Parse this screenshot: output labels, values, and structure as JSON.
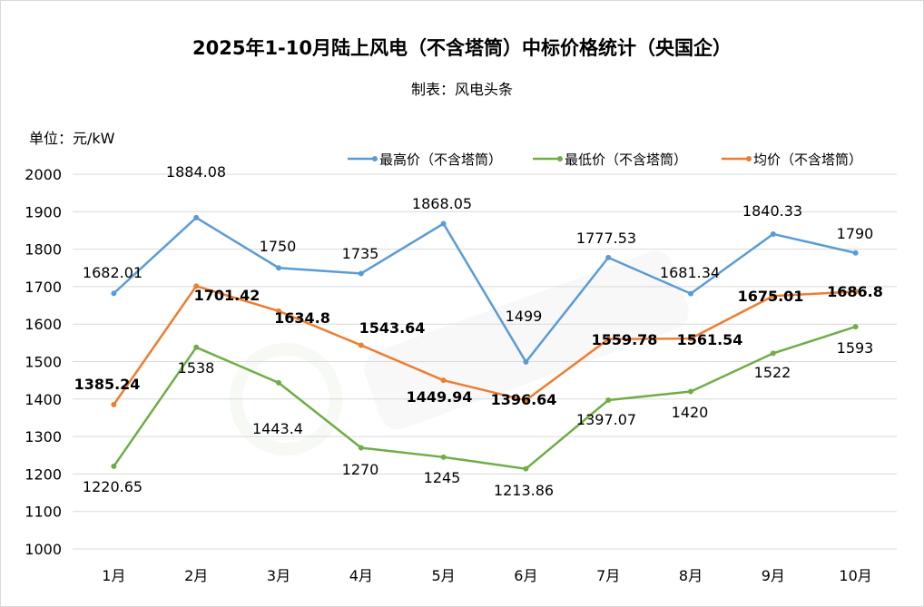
{
  "chart_data": {
    "type": "line",
    "title": "2025年1-10月陆上风电（不含塔筒）中标价格统计（央国企）",
    "subtitle": "制表：风电头条",
    "ylabel": "单位：元/kW",
    "xlabel": "",
    "categories": [
      "1月",
      "2月",
      "3月",
      "4月",
      "5月",
      "6月",
      "7月",
      "8月",
      "9月",
      "10月"
    ],
    "ylim": [
      1000,
      2000
    ],
    "yticks": [
      1000,
      1100,
      1200,
      1300,
      1400,
      1500,
      1600,
      1700,
      1800,
      1900,
      2000
    ],
    "grid": true,
    "legend_position": "top-right",
    "series": [
      {
        "name": "最高价（不含塔筒）",
        "color": "#5b9bd5",
        "values": [
          1682.01,
          1884.08,
          1750,
          1735,
          1868.05,
          1499,
          1777.53,
          1681.34,
          1840.33,
          1790
        ],
        "labels": [
          "1682.01",
          "1884.08",
          "1750",
          "1735",
          "1868.05",
          "1499",
          "1777.53",
          "1681.34",
          "1840.33",
          "1790"
        ]
      },
      {
        "name": "最低价（不含塔筒）",
        "color": "#70ad47",
        "values": [
          1220.65,
          1538,
          1443.4,
          1270,
          1245,
          1213.86,
          1397.07,
          1420,
          1522,
          1593
        ],
        "labels": [
          "1220.65",
          "1538",
          "1443.4",
          "1270",
          "1245",
          "1213.86",
          "1397.07",
          "1420",
          "1522",
          "1593"
        ]
      },
      {
        "name": "均价（不含塔筒）",
        "color": "#ed7d31",
        "values": [
          1385.24,
          1701.42,
          1634.8,
          1543.64,
          1449.94,
          1396.64,
          1559.78,
          1561.54,
          1675.01,
          1686.8
        ],
        "labels": [
          "1385.24",
          "1701.42",
          "1634.8",
          "1543.64",
          "1449.94",
          "1396.64",
          "1559.78",
          "1561.54",
          "1675.01",
          "1686.8"
        ]
      }
    ],
    "watermark": "风电头条"
  }
}
